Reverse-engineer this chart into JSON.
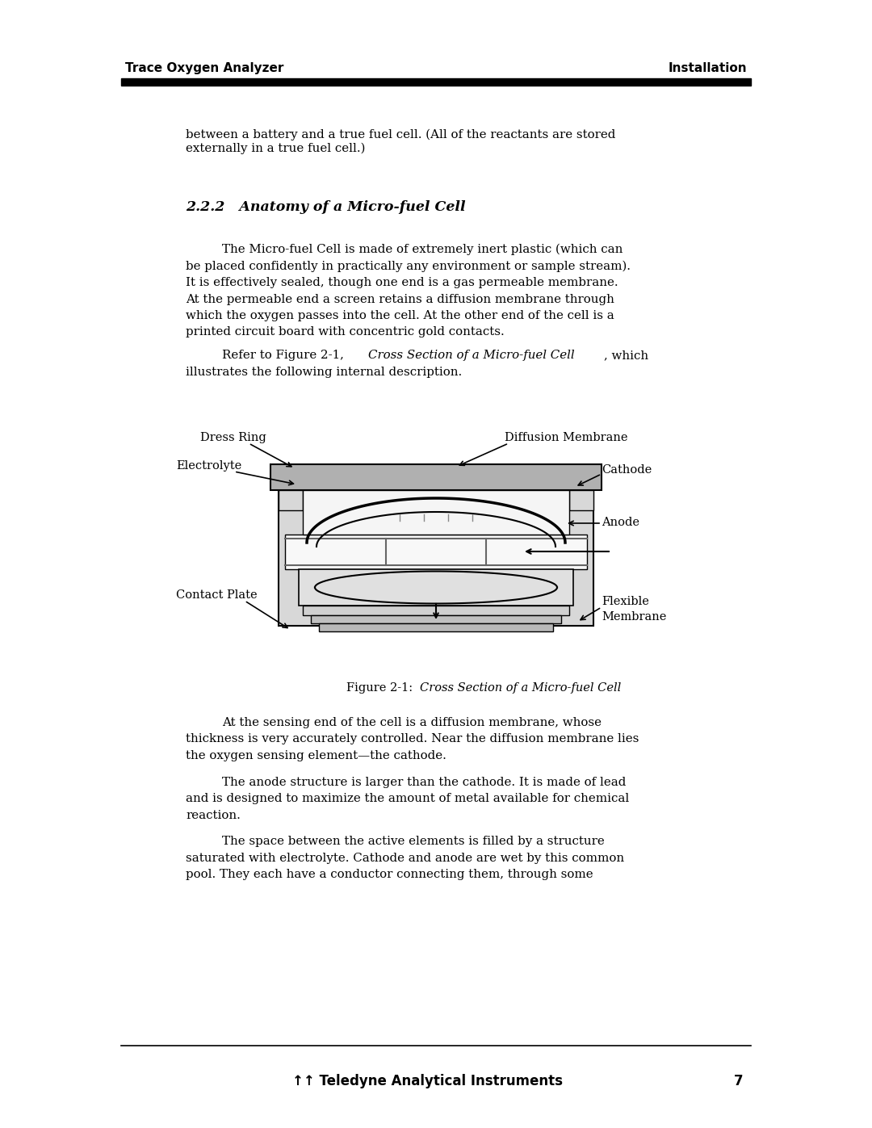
{
  "bg_color": "#ffffff",
  "header_left": "Trace Oxygen Analyzer",
  "header_right": "Installation",
  "footer_center": "Teledyne Analytical Instruments",
  "footer_page": "7",
  "para1": "between a battery and a true fuel cell. (All of the reactants are stored\nexternally in a true fuel cell.)",
  "section_title": "2.2.2   Anatomy of a Micro-fuel Cell",
  "para2_indent": "The Micro-fuel Cell is made of extremely inert plastic (which can",
  "para2_rest": "be placed confidently in practically any environment or sample stream).\nIt is effectively sealed, though one end is a gas permeable membrane.\nAt the permeable end a screen retains a diffusion membrane through\nwhich the oxygen passes into the cell. At the other end of the cell is a\nprinted circuit board with concentric gold contacts.",
  "para3_indent": "Refer to Figure 2-1, ",
  "para3_italic": "Cross Section of a Micro-fuel Cell",
  "para3_rest": ", which",
  "para3_line2": "illustrates the following internal description.",
  "figure_caption_prefix": "Figure 2-1:  ",
  "figure_caption_italic": "Cross Section of a Micro-fuel Cell",
  "para4_indent": "At the sensing end of the cell is a diffusion membrane, whose",
  "para4_rest": "thickness is very accurately controlled. Near the diffusion membrane lies\nthe oxygen sensing element—the cathode.",
  "para5_indent": "The anode structure is larger than the cathode. It is made of lead",
  "para5_rest": "and is designed to maximize the amount of metal available for chemical\nreaction.",
  "para6_indent": "The space between the active elements is filled by a structure",
  "para6_rest": "saturated with electrolyte. Cathode and anode are wet by this common\npool. They each have a conductor connecting them, through some",
  "label_dress_ring": "Dress Ring",
  "label_electrolyte": "Electrolyte",
  "label_contact_plate": "Contact Plate",
  "label_diffusion_membrane": "Diffusion Membrane",
  "label_cathode": "Cathode",
  "label_anode": "Anode",
  "label_flexible_membrane": "Flexible\nMembrane"
}
